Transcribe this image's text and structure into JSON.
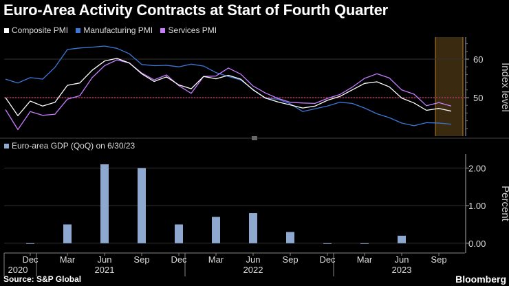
{
  "title": "Euro-Area Activity Contracts at Start of Fourth Quarter",
  "source": "Source: S&P Global",
  "brand": "Bloomberg",
  "colors": {
    "composite": "#ffffff",
    "manufacturing": "#3c78d8",
    "services": "#c77dff",
    "gdp": "#8ea8d0",
    "ref": "#e0316e",
    "highlight": "#3a2a10",
    "highlight_edge": "#c0832e"
  },
  "chart_data": [
    {
      "type": "line",
      "legend": [
        "Composite PMI",
        "Manufacturing PMI",
        "Services PMI"
      ],
      "ylabel": "Index level",
      "ylim": [
        40,
        65
      ],
      "yticks": [
        "60",
        "50"
      ],
      "ytick_values": [
        60,
        50
      ],
      "reference_line": 50,
      "x": [
        "2020-10",
        "2020-11",
        "2020-12",
        "2021-01",
        "2021-02",
        "2021-03",
        "2021-04",
        "2021-05",
        "2021-06",
        "2021-07",
        "2021-08",
        "2021-09",
        "2021-10",
        "2021-11",
        "2021-12",
        "2022-01",
        "2022-02",
        "2022-03",
        "2022-04",
        "2022-05",
        "2022-06",
        "2022-07",
        "2022-08",
        "2022-09",
        "2022-10",
        "2022-11",
        "2022-12",
        "2023-01",
        "2023-02",
        "2023-03",
        "2023-04",
        "2023-05",
        "2023-06",
        "2023-07",
        "2023-08",
        "2023-09",
        "2023-10"
      ],
      "series": [
        {
          "name": "Composite PMI",
          "values": [
            50.0,
            45.3,
            49.1,
            47.8,
            48.8,
            53.2,
            53.8,
            57.1,
            59.5,
            60.2,
            59.0,
            56.2,
            54.2,
            55.4,
            53.3,
            52.3,
            55.5,
            54.9,
            55.8,
            54.8,
            52.0,
            49.9,
            48.9,
            48.1,
            47.3,
            47.8,
            49.3,
            50.3,
            52.0,
            53.7,
            54.1,
            52.8,
            49.9,
            48.6,
            46.7,
            47.2,
            46.5
          ]
        },
        {
          "name": "Manufacturing PMI",
          "values": [
            54.8,
            53.8,
            55.2,
            54.8,
            57.9,
            62.5,
            62.9,
            63.1,
            63.4,
            62.8,
            61.4,
            58.6,
            58.3,
            58.4,
            58.0,
            58.7,
            58.2,
            56.5,
            55.5,
            54.6,
            52.1,
            49.8,
            49.6,
            48.4,
            46.4,
            47.1,
            47.8,
            48.8,
            48.5,
            47.3,
            45.8,
            44.8,
            43.4,
            42.7,
            43.5,
            43.4,
            43.1
          ]
        },
        {
          "name": "Services PMI",
          "values": [
            46.9,
            41.7,
            46.4,
            45.4,
            45.7,
            49.6,
            50.5,
            55.2,
            58.3,
            59.8,
            59.0,
            56.4,
            54.6,
            55.9,
            53.1,
            51.1,
            55.5,
            55.6,
            57.7,
            56.1,
            53.0,
            51.2,
            49.8,
            48.8,
            48.6,
            48.5,
            49.8,
            50.8,
            52.7,
            55.0,
            56.2,
            55.1,
            52.0,
            50.9,
            47.9,
            48.7,
            47.8
          ]
        }
      ],
      "highlight_range": [
        "2023-09",
        "2023-10"
      ]
    },
    {
      "type": "bar",
      "legend": [
        "Euro-area GDP (QoQ) on 6/30/23"
      ],
      "ylabel": "Percent",
      "ylim": [
        -0.15,
        2.3
      ],
      "yticks": [
        "2.00",
        "1.00",
        "0.00"
      ],
      "ytick_values": [
        2.0,
        1.0,
        0.0
      ],
      "x": [
        "2020-12",
        "2021-03",
        "2021-06",
        "2021-09",
        "2021-12",
        "2022-03",
        "2022-06",
        "2022-09",
        "2022-12",
        "2023-03",
        "2023-06"
      ],
      "values": [
        0.0,
        0.5,
        2.1,
        2.0,
        0.5,
        0.7,
        0.8,
        0.3,
        0.0,
        0.0,
        0.2
      ]
    }
  ],
  "xaxis": {
    "months": [
      {
        "label": "Dec",
        "date": "2020-12"
      },
      {
        "label": "Mar",
        "date": "2021-03"
      },
      {
        "label": "Jun",
        "date": "2021-06"
      },
      {
        "label": "Sep",
        "date": "2021-09"
      },
      {
        "label": "Dec",
        "date": "2021-12"
      },
      {
        "label": "Mar",
        "date": "2022-03"
      },
      {
        "label": "Jun",
        "date": "2022-06"
      },
      {
        "label": "Sep",
        "date": "2022-09"
      },
      {
        "label": "Dec",
        "date": "2022-12"
      },
      {
        "label": "Mar",
        "date": "2023-03"
      },
      {
        "label": "Jun",
        "date": "2023-06"
      },
      {
        "label": "Sep",
        "date": "2023-09"
      }
    ],
    "years": [
      {
        "label": "2020",
        "date": "2020-11"
      },
      {
        "label": "2021",
        "date": "2021-06"
      },
      {
        "label": "2022",
        "date": "2022-06"
      },
      {
        "label": "2023",
        "date": "2023-06"
      }
    ]
  }
}
